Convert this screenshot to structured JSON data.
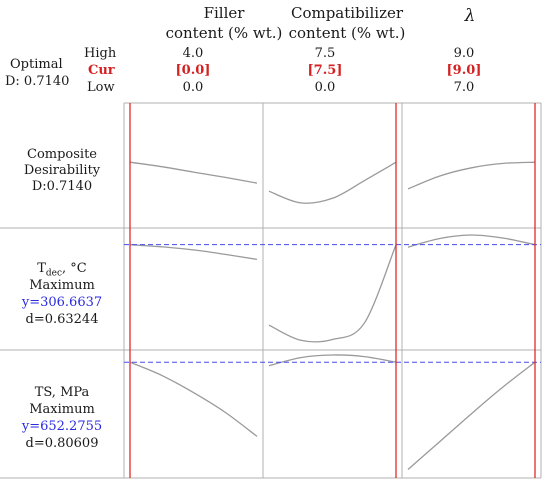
{
  "header": {
    "factors": [
      {
        "name_line1": "Filler",
        "name_line2": "content (% wt.)",
        "high": "4.0",
        "cur": "[0.0]",
        "low": "0.0"
      },
      {
        "name_line1": "Compatibilizer",
        "name_line2": "content (% wt.)",
        "high": "7.5",
        "cur": "[7.5]",
        "low": "0.0"
      },
      {
        "name_line1": "",
        "name_line2": "λ",
        "high": "9.0",
        "cur": "[9.0]",
        "low": "7.0"
      }
    ],
    "optimal_label": "Optimal",
    "d_label": "D: 0.7140",
    "high_label": "High",
    "cur_label": "Cur",
    "low_label": "Low"
  },
  "responses": [
    {
      "line1": "Composite",
      "line2": "Desirability",
      "line3": "D:0.7140"
    },
    {
      "line1_main": "T",
      "line1_sub": "dec",
      "line1_rest": ", °C",
      "line2": "Maximum",
      "y_text": "y=306.6637",
      "d_text": "d=0.63244"
    },
    {
      "line1": "TS, MPa",
      "line2": "Maximum",
      "y_text": "y=652.2755",
      "d_text": "d=0.80609"
    }
  ],
  "colors": {
    "curve": "#9a9a9a",
    "current_line": "#e02a2a",
    "target_line": "#4a4ae8",
    "grid": "#b0b0b0"
  },
  "chart_data": {
    "type": "line",
    "title": "",
    "factors": [
      "Filler content (% wt.)",
      "Compatibilizer content (% wt.)",
      "λ"
    ],
    "factor_ranges": [
      [
        0.0,
        4.0
      ],
      [
        0.0,
        7.5
      ],
      [
        7.0,
        9.0
      ]
    ],
    "current_settings": [
      0.0,
      7.5,
      9.0
    ],
    "rows": [
      {
        "name": "Composite Desirability",
        "current_value": 0.714,
        "ylim": [
          0.45,
          0.95
        ],
        "series": [
          {
            "factor": "Filler content (% wt.)",
            "x": [
              0.0,
              1.0,
              2.0,
              3.0,
              4.0
            ],
            "y": [
              0.714,
              0.695,
              0.672,
              0.649,
              0.625
            ]
          },
          {
            "factor": "Compatibilizer content (% wt.)",
            "x": [
              0.0,
              1.875,
              3.75,
              5.625,
              7.5
            ],
            "y": [
              0.59,
              0.54,
              0.56,
              0.635,
              0.714
            ]
          },
          {
            "factor": "λ",
            "x": [
              7.0,
              7.5,
              8.0,
              8.5,
              9.0
            ],
            "y": [
              0.6,
              0.655,
              0.69,
              0.709,
              0.714
            ]
          }
        ]
      },
      {
        "name": "Tdec, °C",
        "goal": "Maximum",
        "current_value": 306.6637,
        "ylim": [
          280.0,
          310.0
        ],
        "series": [
          {
            "factor": "Filler content (% wt.)",
            "x": [
              0.0,
              1.0,
              2.0,
              3.0,
              4.0
            ],
            "y": [
              306.66,
              306.1,
              305.3,
              304.1,
              302.8
            ]
          },
          {
            "factor": "Compatibilizer content (% wt.)",
            "x": [
              0.0,
              1.875,
              3.75,
              5.625,
              7.5
            ],
            "y": [
              285.5,
              281.5,
              281.7,
              286.0,
              306.66
            ]
          },
          {
            "factor": "λ",
            "x": [
              7.0,
              7.5,
              8.0,
              8.5,
              9.0
            ],
            "y": [
              306.0,
              308.3,
              309.2,
              308.4,
              306.66
            ]
          }
        ]
      },
      {
        "name": "TS, MPa",
        "goal": "Maximum",
        "current_value": 652.2755,
        "ylim": [
          480.0,
          665.0
        ],
        "series": [
          {
            "factor": "Filler content (% wt.)",
            "x": [
              0.0,
              1.0,
              2.0,
              3.0,
              4.0
            ],
            "y": [
              652.3,
              632.0,
              605.5,
              575.0,
              538.0
            ]
          },
          {
            "factor": "Compatibilizer content (% wt.)",
            "x": [
              0.0,
              1.875,
              3.75,
              5.625,
              7.5
            ],
            "y": [
              647.0,
              659.5,
              663.5,
              661.0,
              652.3
            ]
          },
          {
            "factor": "λ",
            "x": [
              7.0,
              7.5,
              8.0,
              8.5,
              9.0
            ],
            "y": [
              487.0,
              530.0,
              573.0,
              614.5,
              652.3
            ]
          }
        ]
      }
    ]
  }
}
